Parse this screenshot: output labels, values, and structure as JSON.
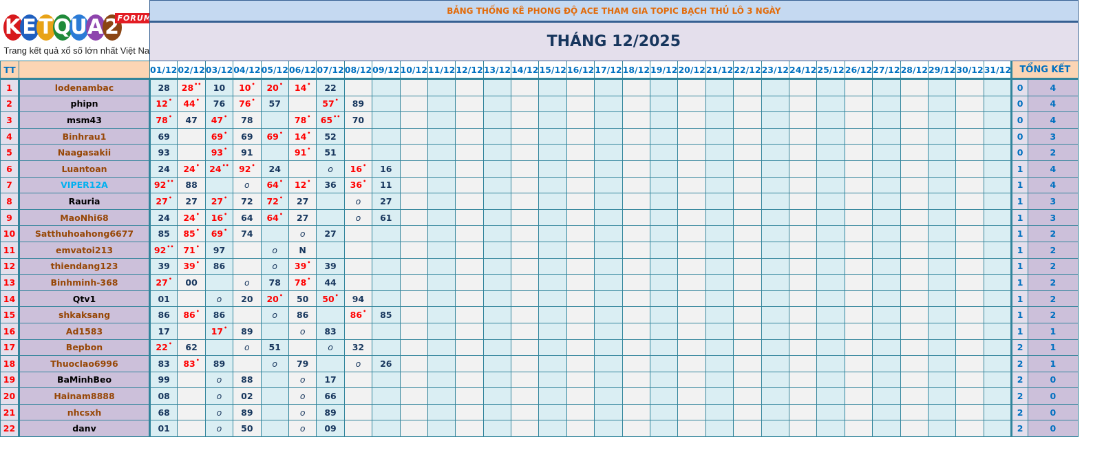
{
  "logo": {
    "text": "KETQUA2",
    "forum": "FORUM",
    "tagline": "Trang kết quả xổ số lớn nhất Việt Nam",
    "ball_colors": [
      "#d7191c",
      "#1f5fbf",
      "#e8a317",
      "#1f8a3a",
      "#2b7bd6",
      "#8e44ad",
      "#8b4513"
    ]
  },
  "header": {
    "title": "BẢNG THỐNG KÊ PHONG ĐỘ ACE THAM GIA TOPIC BẠCH THỦ LÔ 3 NGÀY",
    "month": "THÁNG 12/2025",
    "tt": "TT",
    "summary": "TỔNG KẾT"
  },
  "days": [
    "01/12",
    "02/12",
    "03/12",
    "04/12",
    "05/12",
    "06/12",
    "07/12",
    "08/12",
    "09/12",
    "10/12",
    "11/12",
    "12/12",
    "13/12",
    "14/12",
    "15/12",
    "16/12",
    "17/12",
    "18/12",
    "19/12",
    "20/12",
    "21/12",
    "22/12",
    "23/12",
    "24/12",
    "25/12",
    "26/12",
    "27/12",
    "28/12",
    "29/12",
    "30/12",
    "31/12"
  ],
  "colors": {
    "brown": "#974706",
    "black": "#000000",
    "cyan": "#00b0f0",
    "hit": "#ff0000",
    "grid": "#31849b"
  },
  "rows": [
    {
      "tt": "1",
      "name": "lodenambac",
      "color": "brown",
      "cells": [
        "28",
        "28**",
        "10",
        "10*",
        "20*",
        "14*",
        "22"
      ],
      "a": "0",
      "b": "4"
    },
    {
      "tt": "2",
      "name": "phipn",
      "color": "black",
      "cells": [
        "12*",
        "44*",
        "76",
        "76*",
        "57",
        "",
        "57*",
        "89"
      ],
      "a": "0",
      "b": "4"
    },
    {
      "tt": "3",
      "name": "msm43",
      "color": "black",
      "cells": [
        "78*",
        "47",
        "47*",
        "78",
        "",
        "78*",
        "65**",
        "70"
      ],
      "a": "0",
      "b": "4"
    },
    {
      "tt": "4",
      "name": "Binhrau1",
      "color": "brown",
      "cells": [
        "69",
        "",
        "69*",
        "69",
        "69*",
        "14*",
        "52"
      ],
      "a": "0",
      "b": "3"
    },
    {
      "tt": "5",
      "name": "Naagasakii",
      "color": "brown",
      "cells": [
        "93",
        "",
        "93*",
        "91",
        "",
        "91*",
        "51"
      ],
      "a": "0",
      "b": "2"
    },
    {
      "tt": "6",
      "name": "Luantoan",
      "color": "brown",
      "cells": [
        "24",
        "24*",
        "24**",
        "92*",
        "24",
        "",
        "o",
        "16*",
        "16"
      ],
      "a": "1",
      "b": "4"
    },
    {
      "tt": "7",
      "name": "VIPER12A",
      "color": "cyan",
      "cells": [
        "92**",
        "88",
        "",
        "o",
        "64*",
        "12*",
        "36",
        "36*",
        "11"
      ],
      "a": "1",
      "b": "4"
    },
    {
      "tt": "8",
      "name": "Rauria",
      "color": "black",
      "cells": [
        "27*",
        "27",
        "27*",
        "72",
        "72*",
        "27",
        "",
        "o",
        "27"
      ],
      "a": "1",
      "b": "3"
    },
    {
      "tt": "9",
      "name": "MaoNhi68",
      "color": "brown",
      "cells": [
        "24",
        "24*",
        "16*",
        "64",
        "64*",
        "27",
        "",
        "o",
        "61"
      ],
      "a": "1",
      "b": "3"
    },
    {
      "tt": "10",
      "name": "Satthuhoahong6677",
      "color": "brown",
      "cells": [
        "85",
        "85*",
        "69*",
        "74",
        "",
        "o",
        "27"
      ],
      "a": "1",
      "b": "2"
    },
    {
      "tt": "11",
      "name": "emvatoi213",
      "color": "brown",
      "cells": [
        "92**",
        "71*",
        "97",
        "",
        "o",
        "N"
      ],
      "a": "1",
      "b": "2"
    },
    {
      "tt": "12",
      "name": "thiendang123",
      "color": "brown",
      "cells": [
        "39",
        "39*",
        "86",
        "",
        "o",
        "39*",
        "39"
      ],
      "a": "1",
      "b": "2"
    },
    {
      "tt": "13",
      "name": "Binhminh-368",
      "color": "brown",
      "cells": [
        "27*",
        "00",
        "",
        "o",
        "78",
        "78*",
        "44"
      ],
      "a": "1",
      "b": "2"
    },
    {
      "tt": "14",
      "name": "Qtv1",
      "color": "black",
      "cells": [
        "01",
        "",
        "o",
        "20",
        "20*",
        "50",
        "50*",
        "94"
      ],
      "a": "1",
      "b": "2"
    },
    {
      "tt": "15",
      "name": "shkaksang",
      "color": "brown",
      "cells": [
        "86",
        "86*",
        "86",
        "",
        "o",
        "86",
        "",
        "86*",
        "85"
      ],
      "a": "1",
      "b": "2"
    },
    {
      "tt": "16",
      "name": "Ad1583",
      "color": "brown",
      "cells": [
        "17",
        "",
        "17*",
        "89",
        "",
        "o",
        "83"
      ],
      "a": "1",
      "b": "1"
    },
    {
      "tt": "17",
      "name": "Bepbon",
      "color": "brown",
      "cells": [
        "22*",
        "62",
        "",
        "o",
        "51",
        "",
        "o",
        "32"
      ],
      "a": "2",
      "b": "1"
    },
    {
      "tt": "18",
      "name": "Thuoclao6996",
      "color": "brown",
      "cells": [
        "83",
        "83*",
        "89",
        "",
        "o",
        "79",
        "",
        "o",
        "26"
      ],
      "a": "2",
      "b": "1"
    },
    {
      "tt": "19",
      "name": "BaMinhBeo",
      "color": "black",
      "cells": [
        "99",
        "",
        "o",
        "88",
        "",
        "o",
        "17"
      ],
      "a": "2",
      "b": "0"
    },
    {
      "tt": "20",
      "name": "Hainam8888",
      "color": "brown",
      "cells": [
        "08",
        "",
        "o",
        "02",
        "",
        "o",
        "66"
      ],
      "a": "2",
      "b": "0"
    },
    {
      "tt": "21",
      "name": "nhcsxh",
      "color": "brown",
      "cells": [
        "68",
        "",
        "o",
        "89",
        "",
        "o",
        "89"
      ],
      "a": "2",
      "b": "0"
    },
    {
      "tt": "22",
      "name": "danv",
      "color": "black",
      "cells": [
        "01",
        "",
        "o",
        "50",
        "",
        "o",
        "09"
      ],
      "a": "2",
      "b": "0"
    }
  ]
}
